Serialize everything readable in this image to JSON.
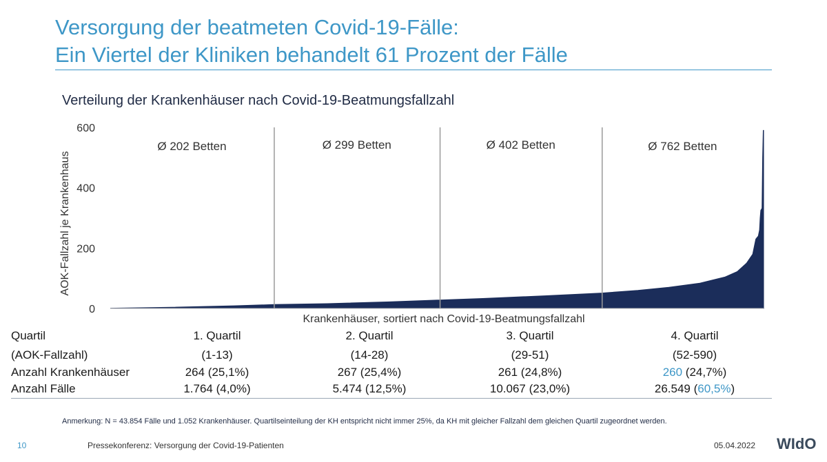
{
  "header": {
    "title_line1": "Versorgung der beatmeten Covid-19-Fälle:",
    "title_line2": "Ein Viertel der Kliniken behandelt 61 Prozent der Fälle",
    "subtitle": "Verteilung der Krankenhäuser nach Covid-19-Beatmungsfallzahl"
  },
  "chart_data": {
    "type": "area",
    "title": "Verteilung der Krankenhäuser nach Covid-19-Beatmungsfallzahl",
    "xlabel": "Krankenhäuser, sortiert nach Covid-19-Beatmungsfallzahl",
    "ylabel": "AOK-Fallzahl je Krankenhaus",
    "ylim": [
      0,
      600
    ],
    "yticks": [
      0,
      200,
      400,
      600
    ],
    "grid": false,
    "color": "#1b2d5a",
    "divider_color": "#9a9a9a",
    "quartile_divider_ranks": [
      264,
      531,
      792
    ],
    "quartile_labels": [
      "Ø 202 Betten",
      "Ø 299 Betten",
      "Ø 402 Betten",
      "Ø 762 Betten"
    ],
    "x": [
      1,
      100,
      200,
      264,
      350,
      450,
      531,
      600,
      700,
      792,
      850,
      900,
      950,
      990,
      1010,
      1025,
      1035,
      1040,
      1044,
      1046,
      1047,
      1048,
      1050,
      1051,
      1052
    ],
    "values": [
      1,
      4,
      9,
      13,
      16,
      22,
      28,
      33,
      42,
      51,
      60,
      70,
      84,
      104,
      122,
      150,
      180,
      230,
      240,
      260,
      300,
      325,
      332,
      500,
      590
    ]
  },
  "table": {
    "header_label_1": "Quartil",
    "header_label_2": "(AOK-Fallzahl)",
    "columns": [
      {
        "quartil": "1. Quartil",
        "range": "(1-13)",
        "kh_count": "264",
        "kh_pct": " (25,1%)",
        "faelle_count": "1.764",
        "faelle_pct_prefix": " (",
        "faelle_pct": "4,0%",
        "faelle_pct_suffix": ")"
      },
      {
        "quartil": "2. Quartil",
        "range": "(14-28)",
        "kh_count": "267",
        "kh_pct": " (25,4%)",
        "faelle_count": "5.474",
        "faelle_pct_prefix": " (",
        "faelle_pct": "12,5%",
        "faelle_pct_suffix": ")"
      },
      {
        "quartil": "3. Quartil",
        "range": "(29-51)",
        "kh_count": "261",
        "kh_pct": " (24,8%)",
        "faelle_count": "10.067",
        "faelle_pct_prefix": " (",
        "faelle_pct": "23,0%",
        "faelle_pct_suffix": ")"
      },
      {
        "quartil": "4. Quartil",
        "range": "(52-590)",
        "kh_count": "260",
        "kh_pct": " (24,7%)",
        "faelle_count": "26.549",
        "faelle_pct_prefix": " (",
        "faelle_pct": "60,5%",
        "faelle_pct_suffix": ")"
      }
    ],
    "row_label_kh": "Anzahl Krankenhäuser",
    "row_label_faelle": "Anzahl Fälle",
    "highlight_color": "#3e97c7"
  },
  "note": "Anmerkung: N = 43.854 Fälle und 1.052 Krankenhäuser. Quartilseinteilung der KH entspricht nicht immer 25%, da KH mit gleicher Fallzahl dem gleichen Quartil zugeordnet werden.",
  "footer": {
    "page": "10",
    "text": "Pressekonferenz: Versorgung der Covid-19-Patienten",
    "date": "05.04.2022",
    "logo": "WIdO"
  }
}
